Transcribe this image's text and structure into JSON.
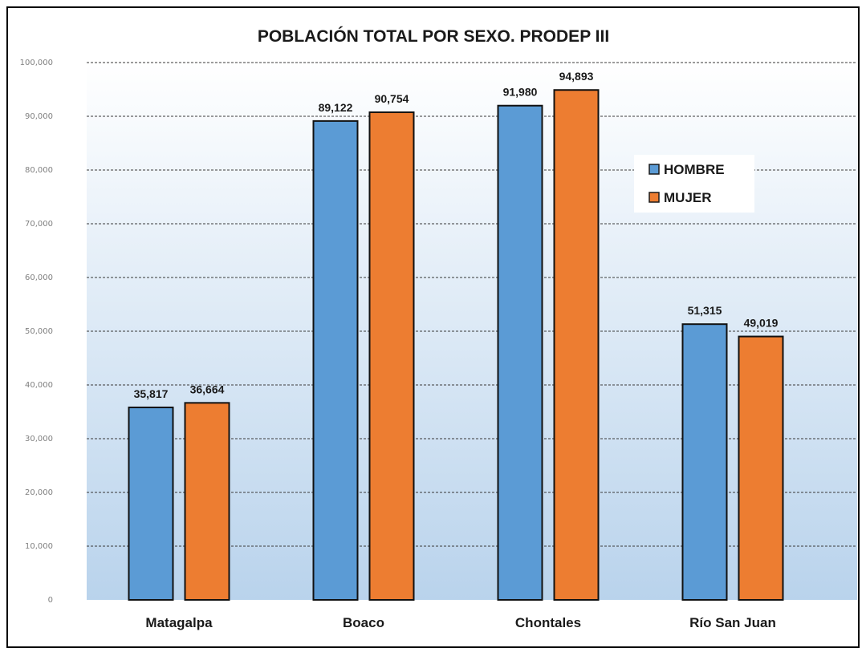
{
  "chart_data": {
    "type": "bar",
    "title": "POBLACIÓN TOTAL POR SEXO. PRODEP III",
    "categories": [
      "Matagalpa",
      "Boaco",
      "Chontales",
      "Río San Juan"
    ],
    "series": [
      {
        "name": "HOMBRE",
        "values": [
          35817,
          89122,
          91980,
          51315
        ],
        "labels": [
          "35,817",
          "89,122",
          "91,980",
          "51,315"
        ],
        "color": "#5b9bd5"
      },
      {
        "name": "MUJER",
        "values": [
          36664,
          90754,
          94893,
          49019
        ],
        "labels": [
          "36,664",
          "90,754",
          "94,893",
          "49,019"
        ],
        "color": "#ed7d31"
      }
    ],
    "yticks": [
      "0",
      "10,000",
      "20,000",
      "30,000",
      "40,000",
      "50,000",
      "60,000",
      "70,000",
      "80,000",
      "90,000",
      "100,000"
    ],
    "ylim": [
      0,
      100000
    ],
    "grid": true,
    "legend_position": "right"
  }
}
